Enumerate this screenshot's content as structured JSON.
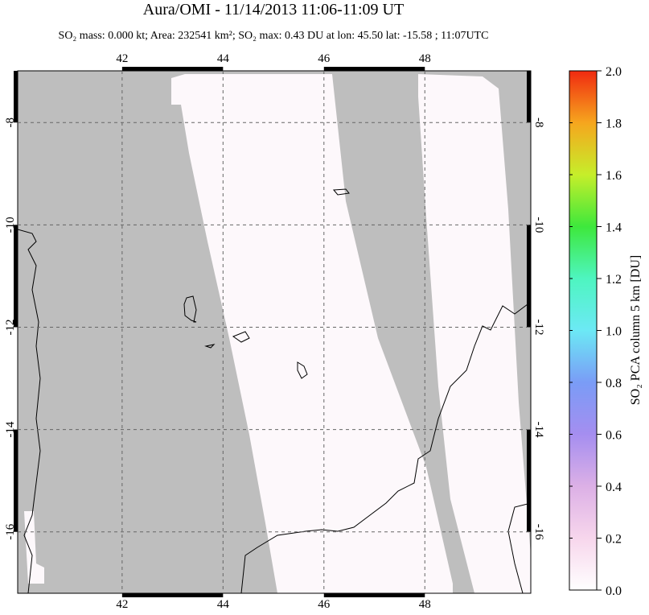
{
  "title": "Aura/OMI - 11/14/2013 11:06-11:09 UT",
  "subtitle": "SO₂ mass: 0.000 kt; Area: 232541 km²; SO₂ max: 0.43 DU at lon: 45.50 lat: -15.58 ; 11:07UTC",
  "map": {
    "lon_range": [
      39.93,
      50.1
    ],
    "lat_range": [
      -6.99,
      -17.2
    ],
    "lon_ticks": [
      42,
      44,
      46,
      48
    ],
    "lat_ticks": [
      -8,
      -10,
      -12,
      -14,
      -16
    ]
  },
  "colorbar": {
    "label": "SO₂ PCA column 5 km [DU]",
    "range": [
      0,
      2
    ],
    "ticks": [
      {
        "value": 0,
        "label": "0.0"
      },
      {
        "value": 0.2,
        "label": "0.2"
      },
      {
        "value": 0.4,
        "label": "0.4"
      },
      {
        "value": 0.6,
        "label": "0.6"
      },
      {
        "value": 0.8,
        "label": "0.8"
      },
      {
        "value": 1,
        "label": "1.0"
      },
      {
        "value": 1.2,
        "label": "1.2"
      },
      {
        "value": 1.4,
        "label": "1.4"
      },
      {
        "value": 1.6,
        "label": "1.6"
      },
      {
        "value": 1.8,
        "label": "1.8"
      },
      {
        "value": 2,
        "label": "2.0"
      }
    ]
  }
}
